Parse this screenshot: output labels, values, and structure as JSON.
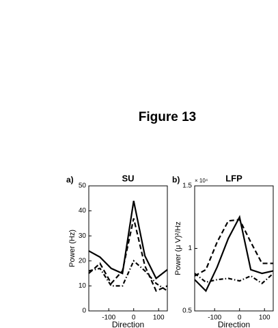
{
  "figure_title": "Figure 13",
  "chart_data": [
    {
      "type": "line",
      "panel_label": "a)",
      "title": "SU",
      "x_label": "Direction",
      "y_label": "Power (Hz)",
      "x": [
        -180,
        -135,
        -90,
        -45,
        0,
        45,
        90,
        135
      ],
      "xlim": [
        -180,
        135
      ],
      "xticks": [
        -100,
        0,
        100
      ],
      "ylim": [
        0,
        50
      ],
      "yticks": [
        0,
        10,
        20,
        30,
        40,
        50
      ],
      "series": [
        {
          "color": "#000000",
          "dash": "solid",
          "values": [
            24,
            21.5,
            17,
            15,
            44,
            22,
            13,
            16.5
          ]
        },
        {
          "color": "#000000",
          "dash": "dashed",
          "values": [
            15,
            19,
            11,
            16,
            37,
            18,
            8,
            10
          ]
        },
        {
          "color": "#000000",
          "dash": "dashdot",
          "values": [
            16,
            17,
            10,
            10,
            20,
            16,
            11,
            8
          ]
        }
      ]
    },
    {
      "type": "line",
      "panel_label": "b)",
      "title": "LFP",
      "x_label": "Direction",
      "y_label": "Power (μ V)²/Hz",
      "y_multiplier": "× 10⁴",
      "x": [
        -180,
        -135,
        -90,
        -45,
        0,
        45,
        90,
        135
      ],
      "xlim": [
        -180,
        135
      ],
      "xticks": [
        -100,
        0,
        100
      ],
      "ylim": [
        0.5,
        1.5
      ],
      "yticks": [
        0.5,
        1,
        1.5
      ],
      "series": [
        {
          "color": "#000000",
          "dash": "solid",
          "values": [
            0.75,
            0.66,
            0.85,
            1.08,
            1.25,
            0.83,
            0.8,
            0.82
          ]
        },
        {
          "color": "#000000",
          "dash": "dashed",
          "values": [
            0.78,
            0.83,
            1.05,
            1.22,
            1.23,
            1.05,
            0.88,
            0.88
          ]
        },
        {
          "color": "#000000",
          "dash": "dashdot",
          "values": [
            0.8,
            0.73,
            0.75,
            0.76,
            0.74,
            0.78,
            0.72,
            0.8
          ]
        }
      ]
    }
  ]
}
